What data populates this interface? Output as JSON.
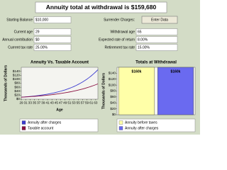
{
  "title": "Annuity total at withdrawal is $159,680",
  "form": {
    "left": [
      {
        "label": "Starting Balance",
        "value": "$10,000"
      },
      {
        "label": "Current age",
        "value": "29"
      },
      {
        "label": "Annual contribution",
        "value": "$0"
      },
      {
        "label": "Current tax rate",
        "value": "25.00%"
      }
    ],
    "surrender_label": "Surrender Charges:",
    "button": "Enter Data",
    "right": [
      {
        "label": "Withdrawal age",
        "value": "65"
      },
      {
        "label": "Expected rate of return",
        "value": "8.00%"
      },
      {
        "label": "Retirement tax rate",
        "value": "15.00%"
      }
    ]
  },
  "chart_data": [
    {
      "type": "line",
      "title": "Annuity Vs. Taxable Account",
      "ylabel": "Thousands of Dollars",
      "xlabel": "Age",
      "x": [
        29,
        30,
        31,
        32,
        33,
        34,
        35,
        36,
        37,
        38,
        39,
        40,
        41,
        42,
        43,
        44,
        45,
        46,
        47,
        48,
        49,
        50,
        51,
        52,
        53,
        54,
        55,
        56,
        57,
        58,
        59,
        60,
        61,
        62,
        63,
        64
      ],
      "xlim": [
        29,
        64
      ],
      "xticks": [
        29,
        31,
        33,
        35,
        37,
        39,
        41,
        43,
        45,
        47,
        49,
        51,
        53,
        55,
        57,
        59,
        61,
        63
      ],
      "ylim": [
        0,
        160
      ],
      "yticks": [
        {
          "value": 0,
          "label": "$0"
        },
        {
          "value": 20,
          "label": "$20"
        },
        {
          "value": 40,
          "label": "$40"
        },
        {
          "value": 60,
          "label": "$60"
        },
        {
          "value": 80,
          "label": "$80"
        },
        {
          "value": 100,
          "label": "$100"
        },
        {
          "value": 120,
          "label": "$120"
        },
        {
          "value": 140,
          "label": "$140"
        }
      ],
      "grid": false,
      "series": [
        {
          "name": "Annuity after charges",
          "color": "#3b3bd0",
          "values": [
            10.0,
            10.8,
            11.7,
            12.6,
            13.6,
            14.7,
            15.9,
            17.1,
            18.5,
            20.0,
            21.6,
            23.3,
            25.2,
            27.2,
            29.4,
            31.7,
            34.3,
            37.0,
            40.0,
            43.2,
            46.6,
            50.3,
            54.4,
            58.7,
            63.4,
            68.5,
            74.0,
            79.9,
            86.3,
            93.2,
            100.6,
            108.7,
            117.4,
            126.8,
            136.9,
            147.9
          ]
        },
        {
          "name": "Taxable account",
          "color": "#8a1040",
          "values": [
            10.0,
            10.6,
            11.2,
            11.9,
            12.6,
            13.4,
            14.2,
            15.0,
            15.9,
            16.9,
            17.9,
            19.0,
            20.1,
            21.3,
            22.6,
            24.0,
            25.4,
            26.9,
            28.5,
            30.3,
            32.1,
            34.0,
            36.0,
            38.2,
            40.5,
            42.9,
            45.5,
            48.2,
            51.1,
            54.2,
            57.4,
            60.9,
            64.5,
            68.4,
            72.5,
            76.9
          ]
        }
      ]
    },
    {
      "type": "bar",
      "title": "Totals at Withdrawal",
      "ylabel": "Thousands of Dollars",
      "ylim": [
        0,
        160
      ],
      "yticks": [
        {
          "value": 0,
          "label": "$0"
        },
        {
          "value": 20,
          "label": "$20"
        },
        {
          "value": 40,
          "label": "$40"
        },
        {
          "value": 60,
          "label": "$60"
        },
        {
          "value": 80,
          "label": "$80"
        },
        {
          "value": 100,
          "label": "$100"
        },
        {
          "value": 120,
          "label": "$120"
        },
        {
          "value": 140,
          "label": "$140"
        }
      ],
      "grid": false,
      "series": [
        {
          "name": "Annuity before taxes",
          "color": "#ffffa8",
          "values": [
            160
          ],
          "value_labels": [
            "$160k"
          ]
        },
        {
          "name": "Annuity after charges",
          "color": "#6a6af0",
          "values": [
            160
          ],
          "value_labels": [
            "$160k"
          ]
        }
      ]
    }
  ]
}
